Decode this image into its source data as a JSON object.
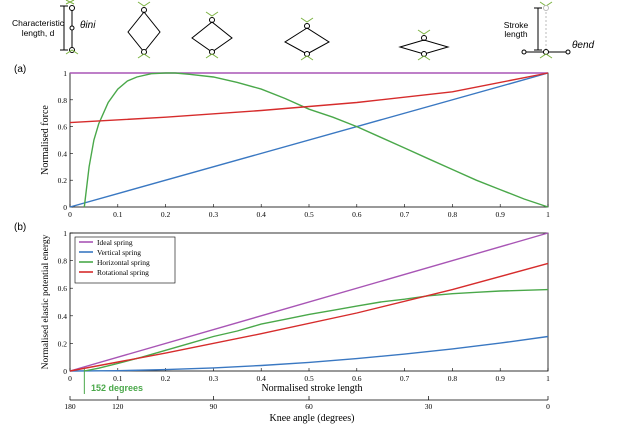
{
  "schematic": {
    "char_length_label_1": "Characteristic",
    "char_length_label_2": "length, d",
    "theta_ini": "θini",
    "stroke_label_1": "Stroke",
    "stroke_label_2": "length",
    "theta_end": "θend"
  },
  "chart_data": [
    {
      "panel_label": "(a)",
      "type": "line",
      "ylabel": "Normalised force",
      "xlim": [
        0,
        1
      ],
      "ylim": [
        0,
        1
      ],
      "xticks": [
        "0",
        "0.1",
        "0.2",
        "0.3",
        "0.4",
        "0.5",
        "0.6",
        "0.7",
        "0.8",
        "0.9",
        "1"
      ],
      "yticks": [
        "0",
        "0.2",
        "0.4",
        "0.6",
        "0.8",
        "1"
      ],
      "series": [
        {
          "color": "#a855b5",
          "x": [
            0,
            1
          ],
          "y": [
            1,
            1
          ]
        },
        {
          "color": "#3a78c2",
          "x": [
            0,
            1
          ],
          "y": [
            0,
            1
          ]
        },
        {
          "color": "#4aa84a",
          "x": [
            0.03,
            0.04,
            0.05,
            0.06,
            0.08,
            0.1,
            0.12,
            0.14,
            0.17,
            0.2,
            0.22,
            0.25,
            0.3,
            0.35,
            0.4,
            0.45,
            0.5,
            0.55,
            0.6,
            0.65,
            0.7,
            0.75,
            0.8,
            0.85,
            0.9,
            0.95,
            1.0
          ],
          "y": [
            0,
            0.3,
            0.5,
            0.62,
            0.78,
            0.88,
            0.94,
            0.97,
            0.995,
            1.0,
            1.0,
            0.99,
            0.97,
            0.93,
            0.88,
            0.81,
            0.73,
            0.67,
            0.6,
            0.52,
            0.44,
            0.36,
            0.28,
            0.2,
            0.13,
            0.06,
            0
          ]
        },
        {
          "color": "#d62c2c",
          "x": [
            0,
            0.2,
            0.4,
            0.6,
            0.8,
            1
          ],
          "y": [
            0.63,
            0.67,
            0.72,
            0.78,
            0.86,
            1
          ]
        }
      ]
    },
    {
      "panel_label": "(b)",
      "type": "line",
      "ylabel": "Normalised elastic potential energy",
      "xlabel": "Normalised stroke length",
      "xlim": [
        0,
        1
      ],
      "ylim": [
        0,
        1
      ],
      "xticks": [
        "0",
        "0.1",
        "0.2",
        "0.3",
        "0.4",
        "0.5",
        "0.6",
        "0.7",
        "0.8",
        "0.9",
        "1"
      ],
      "yticks": [
        "0",
        "0.2",
        "0.4",
        "0.6",
        "0.8",
        "1"
      ],
      "legend_position": "top-left",
      "series": [
        {
          "name": "Ideal spring",
          "color": "#a855b5",
          "x": [
            0,
            1
          ],
          "y": [
            0,
            1
          ]
        },
        {
          "name": "Vertical spring",
          "color": "#3a78c2",
          "x": [
            0,
            0.1,
            0.2,
            0.3,
            0.4,
            0.5,
            0.6,
            0.7,
            0.8,
            0.9,
            1.0
          ],
          "y": [
            0,
            0.0025,
            0.01,
            0.0225,
            0.04,
            0.0625,
            0.09,
            0.1225,
            0.16,
            0.2025,
            0.25
          ]
        },
        {
          "name": "Horizontal spring",
          "color": "#4aa84a",
          "x": [
            0.03,
            0.06,
            0.1,
            0.15,
            0.2,
            0.25,
            0.3,
            0.35,
            0.4,
            0.45,
            0.5,
            0.55,
            0.6,
            0.65,
            0.7,
            0.75,
            0.8,
            0.85,
            0.9,
            0.95,
            1.0
          ],
          "y": [
            0,
            0.02,
            0.055,
            0.1,
            0.15,
            0.2,
            0.25,
            0.29,
            0.34,
            0.375,
            0.41,
            0.44,
            0.47,
            0.5,
            0.52,
            0.545,
            0.56,
            0.57,
            0.58,
            0.585,
            0.59
          ]
        },
        {
          "name": "Rotational spring",
          "color": "#d62c2c",
          "x": [
            0,
            0.2,
            0.4,
            0.6,
            0.8,
            1.0
          ],
          "y": [
            0,
            0.13,
            0.27,
            0.42,
            0.59,
            0.78
          ]
        }
      ],
      "annotation": "152 degrees",
      "secondary_axis": {
        "label": "Knee angle (degrees)",
        "ticks": [
          "180",
          "120",
          "90",
          "60",
          "30",
          "0"
        ],
        "tick_positions": [
          0,
          0.1,
          0.3,
          0.5,
          0.75,
          1.0
        ]
      }
    }
  ]
}
